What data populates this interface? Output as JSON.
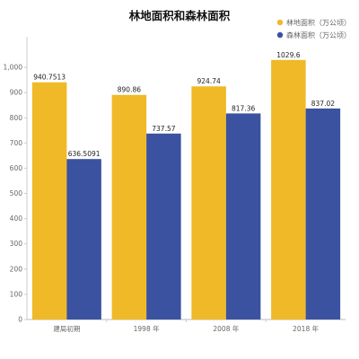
{
  "chart_data": {
    "type": "bar",
    "title": "林地面积和森林面积",
    "xlabel": "",
    "ylabel": "",
    "categories": [
      "建局初期",
      "1998 年",
      "2008 年",
      "2018 年"
    ],
    "series": [
      {
        "name": "林地面积（万公顷）",
        "values": [
          940.7513,
          890.86,
          924.74,
          1029.6
        ],
        "labels": [
          "940.7513",
          "890.86",
          "924.74",
          "1029.6"
        ],
        "color": "#F0B928"
      },
      {
        "name": "森林面积（万公顷）",
        "values": [
          636.5091,
          737.57,
          817.36,
          837.02
        ],
        "labels": [
          "636.5091",
          "737.57",
          "817.36",
          "837.02"
        ],
        "color": "#3B52A0"
      }
    ],
    "ylim": [
      0,
      1100
    ],
    "yticks": [
      0,
      100,
      200,
      300,
      400,
      500,
      600,
      700,
      800,
      900,
      "1,000"
    ],
    "legend_position": "top-right",
    "grid": false
  }
}
